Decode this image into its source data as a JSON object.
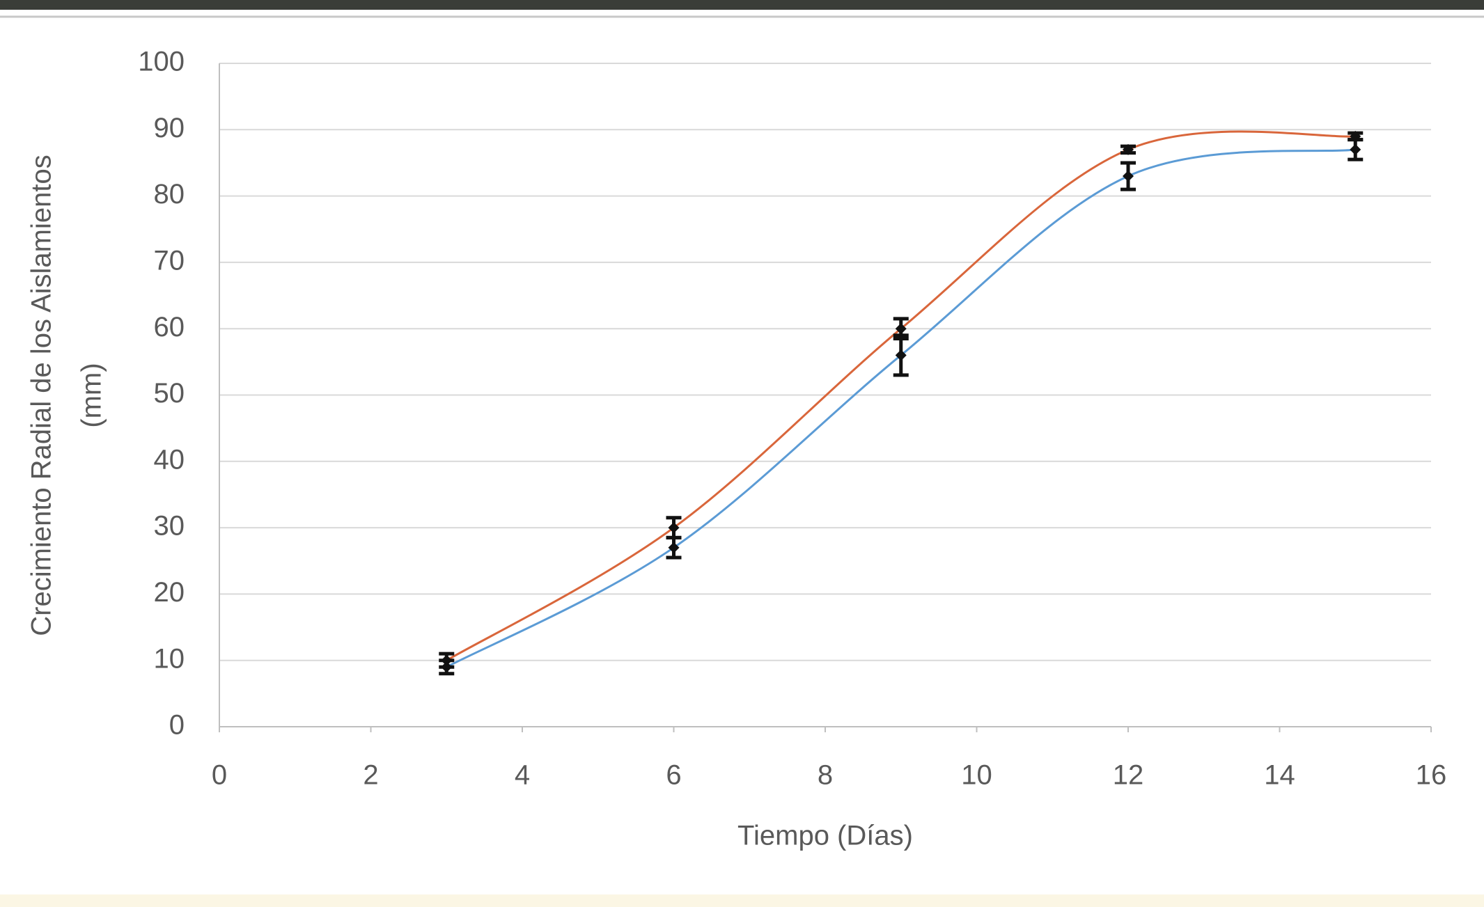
{
  "chart_data": {
    "type": "line",
    "xlabel": "Tiempo (Días)",
    "ylabel": [
      "Crecimiento Radial  de los Aislamientos",
      "(mm)"
    ],
    "x": [
      3,
      6,
      9,
      12,
      15
    ],
    "series": [
      {
        "color": "#5b9bd5",
        "values": [
          9,
          27,
          56,
          83,
          87
        ],
        "errors": [
          1,
          1.5,
          3,
          2,
          1.5
        ]
      },
      {
        "color": "#d9663b",
        "values": [
          10,
          30,
          60,
          87,
          89
        ],
        "errors": [
          1,
          1.5,
          1.5,
          0.5,
          0.5
        ]
      }
    ],
    "xlim": [
      0,
      16
    ],
    "xticks": [
      0,
      2,
      4,
      6,
      8,
      10,
      12,
      14,
      16
    ],
    "ylim": [
      0,
      100
    ],
    "yticks": [
      0,
      10,
      20,
      30,
      40,
      50,
      60,
      70,
      80,
      90,
      100
    ],
    "grid": true,
    "smooth": true
  }
}
